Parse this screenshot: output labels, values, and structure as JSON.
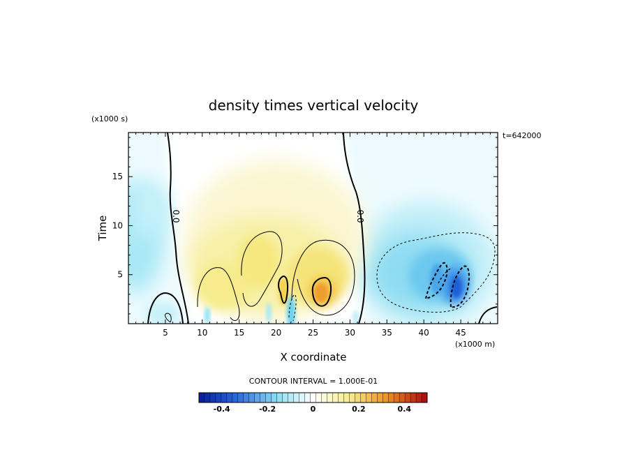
{
  "chart_data": {
    "type": "heatmap",
    "title": "density times vertical velocity",
    "xlabel": "X coordinate",
    "ylabel": "Time",
    "x_unit": "(x1000 m)",
    "y_unit": "(x1000 s)",
    "time_stamp": "t=642000",
    "xlim": [
      0,
      50
    ],
    "ylim": [
      0,
      19.5
    ],
    "x_ticks": [
      "5",
      "10",
      "15",
      "20",
      "25",
      "30",
      "35",
      "40",
      "45"
    ],
    "x_tick_values": [
      5,
      10,
      15,
      20,
      25,
      30,
      35,
      40,
      45
    ],
    "y_ticks": [
      "5",
      "10",
      "15"
    ],
    "y_tick_values": [
      5,
      10,
      15
    ],
    "zero_contour_label": "0.0",
    "contour_interval_text": "CONTOUR INTERVAL = 1.000E-01",
    "colorbar": {
      "min": -0.5,
      "max": 0.5,
      "levels": 41,
      "tick_labels": [
        "-0.4",
        "-0.2",
        "0",
        "0.2",
        "0.4"
      ],
      "tick_values": [
        -0.4,
        -0.2,
        0,
        0.2,
        0.4
      ],
      "colors": [
        "#0a1f9e",
        "#2a6ee6",
        "#86def0",
        "#ffffff",
        "#f5ec86",
        "#f09020",
        "#b01010"
      ]
    },
    "features": [
      {
        "x": 1.5,
        "y": 9.5,
        "value": -0.08
      },
      {
        "x": 5.0,
        "y": 12.0,
        "value": -0.03
      },
      {
        "x": 13.0,
        "y": 5.0,
        "value": 0.05
      },
      {
        "x": 17.0,
        "y": 7.5,
        "value": 0.07
      },
      {
        "x": 21.0,
        "y": 3.0,
        "value": 0.13
      },
      {
        "x": 24.0,
        "y": 6.0,
        "value": 0.1
      },
      {
        "x": 26.0,
        "y": 3.5,
        "value": 0.22
      },
      {
        "x": 22.0,
        "y": 1.5,
        "value": -0.12
      },
      {
        "x": 40.0,
        "y": 5.0,
        "value": -0.1
      },
      {
        "x": 42.0,
        "y": 4.0,
        "value": -0.16
      },
      {
        "x": 45.0,
        "y": 3.5,
        "value": -0.25
      }
    ]
  }
}
